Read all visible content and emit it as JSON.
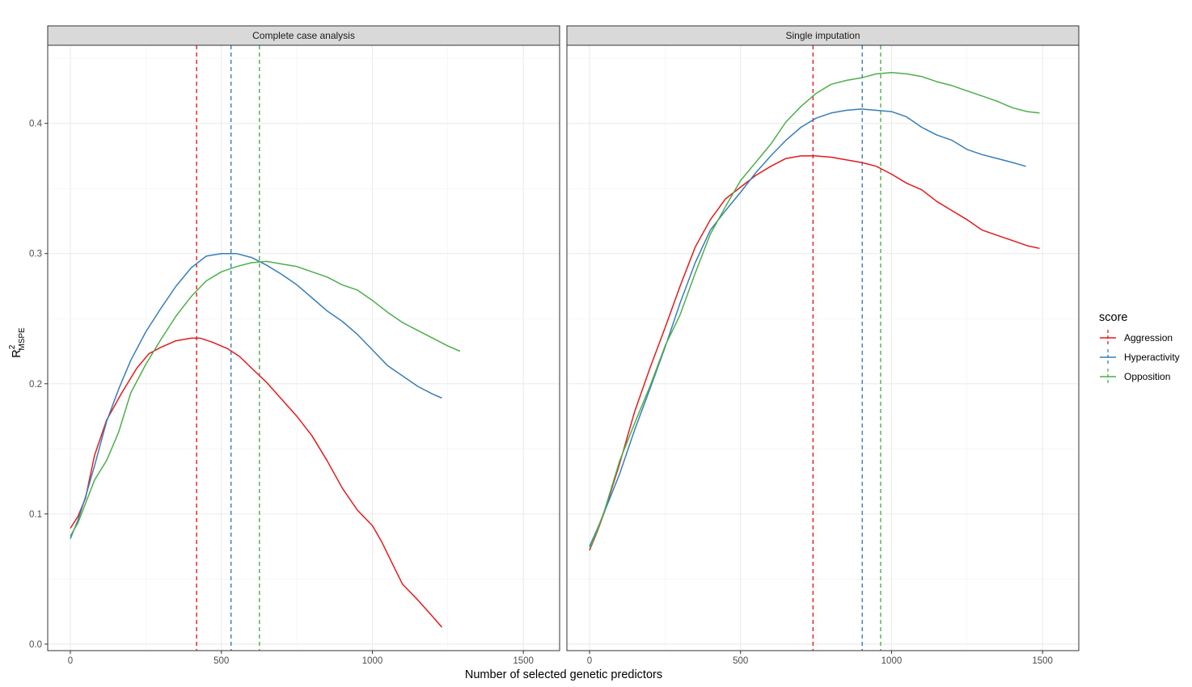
{
  "chart_data": {
    "type": "line",
    "xlabel": "Number of selected genetic predictors",
    "ylabel_main": "R",
    "ylabel_sup": "2",
    "ylabel_sub": "MSPE",
    "xlim": [
      -75,
      1620
    ],
    "ylim": [
      -0.005,
      0.46
    ],
    "x_ticks": [
      0,
      500,
      1000,
      1500
    ],
    "y_ticks": [
      0.0,
      0.1,
      0.2,
      0.3,
      0.4
    ],
    "y_tick_labels": [
      "0.0",
      "0.1",
      "0.2",
      "0.3",
      "0.4"
    ],
    "legend": {
      "title": "score",
      "position": "right"
    },
    "colors": {
      "Aggression": "#e41a1c",
      "Hyperactivity": "#377eb8",
      "Opposition": "#4daf4a"
    },
    "panels": [
      {
        "strip": "Complete case analysis",
        "vlines": {
          "Aggression": 418,
          "Hyperactivity": 532,
          "Opposition": 626
        },
        "series": [
          {
            "name": "Aggression",
            "points": [
              [
                0,
                0.089
              ],
              [
                25,
                0.098
              ],
              [
                50,
                0.112
              ],
              [
                80,
                0.145
              ],
              [
                120,
                0.172
              ],
              [
                170,
                0.193
              ],
              [
                220,
                0.212
              ],
              [
                260,
                0.223
              ],
              [
                300,
                0.228
              ],
              [
                350,
                0.233
              ],
              [
                400,
                0.235
              ],
              [
                430,
                0.235
              ],
              [
                470,
                0.232
              ],
              [
                520,
                0.227
              ],
              [
                560,
                0.221
              ],
              [
                600,
                0.212
              ],
              [
                650,
                0.201
              ],
              [
                700,
                0.188
              ],
              [
                750,
                0.175
              ],
              [
                800,
                0.16
              ],
              [
                850,
                0.141
              ],
              [
                900,
                0.12
              ],
              [
                950,
                0.103
              ],
              [
                1000,
                0.091
              ],
              [
                1030,
                0.079
              ],
              [
                1070,
                0.06
              ],
              [
                1100,
                0.046
              ],
              [
                1150,
                0.034
              ],
              [
                1200,
                0.021
              ],
              [
                1230,
                0.013
              ]
            ]
          },
          {
            "name": "Hyperactivity",
            "points": [
              [
                0,
                0.081
              ],
              [
                25,
                0.095
              ],
              [
                50,
                0.113
              ],
              [
                80,
                0.137
              ],
              [
                120,
                0.171
              ],
              [
                160,
                0.196
              ],
              [
                200,
                0.218
              ],
              [
                250,
                0.24
              ],
              [
                300,
                0.258
              ],
              [
                350,
                0.275
              ],
              [
                400,
                0.289
              ],
              [
                450,
                0.298
              ],
              [
                500,
                0.3
              ],
              [
                550,
                0.3
              ],
              [
                600,
                0.297
              ],
              [
                650,
                0.291
              ],
              [
                700,
                0.284
              ],
              [
                750,
                0.276
              ],
              [
                800,
                0.266
              ],
              [
                850,
                0.256
              ],
              [
                900,
                0.248
              ],
              [
                950,
                0.238
              ],
              [
                1000,
                0.226
              ],
              [
                1050,
                0.214
              ],
              [
                1100,
                0.206
              ],
              [
                1150,
                0.198
              ],
              [
                1200,
                0.192
              ],
              [
                1230,
                0.189
              ]
            ]
          },
          {
            "name": "Opposition",
            "points": [
              [
                0,
                0.083
              ],
              [
                25,
                0.093
              ],
              [
                50,
                0.108
              ],
              [
                80,
                0.126
              ],
              [
                120,
                0.141
              ],
              [
                160,
                0.163
              ],
              [
                200,
                0.193
              ],
              [
                250,
                0.215
              ],
              [
                300,
                0.234
              ],
              [
                350,
                0.252
              ],
              [
                400,
                0.267
              ],
              [
                450,
                0.279
              ],
              [
                500,
                0.286
              ],
              [
                550,
                0.29
              ],
              [
                600,
                0.293
              ],
              [
                650,
                0.294
              ],
              [
                700,
                0.292
              ],
              [
                750,
                0.29
              ],
              [
                800,
                0.286
              ],
              [
                850,
                0.282
              ],
              [
                900,
                0.276
              ],
              [
                950,
                0.272
              ],
              [
                1000,
                0.264
              ],
              [
                1050,
                0.255
              ],
              [
                1100,
                0.247
              ],
              [
                1150,
                0.241
              ],
              [
                1200,
                0.235
              ],
              [
                1250,
                0.229
              ],
              [
                1290,
                0.225
              ]
            ]
          }
        ]
      },
      {
        "strip": "Single imputation",
        "vlines": {
          "Aggression": 740,
          "Hyperactivity": 903,
          "Opposition": 964
        },
        "series": [
          {
            "name": "Aggression",
            "points": [
              [
                0,
                0.072
              ],
              [
                25,
                0.086
              ],
              [
                50,
                0.102
              ],
              [
                100,
                0.139
              ],
              [
                150,
                0.179
              ],
              [
                200,
                0.212
              ],
              [
                250,
                0.243
              ],
              [
                300,
                0.275
              ],
              [
                350,
                0.305
              ],
              [
                400,
                0.326
              ],
              [
                450,
                0.342
              ],
              [
                500,
                0.351
              ],
              [
                550,
                0.36
              ],
              [
                600,
                0.367
              ],
              [
                650,
                0.373
              ],
              [
                700,
                0.375
              ],
              [
                750,
                0.375
              ],
              [
                800,
                0.374
              ],
              [
                850,
                0.372
              ],
              [
                900,
                0.37
              ],
              [
                950,
                0.367
              ],
              [
                1000,
                0.361
              ],
              [
                1050,
                0.354
              ],
              [
                1100,
                0.349
              ],
              [
                1150,
                0.34
              ],
              [
                1200,
                0.333
              ],
              [
                1250,
                0.326
              ],
              [
                1300,
                0.318
              ],
              [
                1350,
                0.314
              ],
              [
                1400,
                0.31
              ],
              [
                1450,
                0.306
              ],
              [
                1490,
                0.304
              ]
            ]
          },
          {
            "name": "Hyperactivity",
            "points": [
              [
                0,
                0.075
              ],
              [
                25,
                0.088
              ],
              [
                50,
                0.102
              ],
              [
                100,
                0.131
              ],
              [
                150,
                0.165
              ],
              [
                200,
                0.196
              ],
              [
                250,
                0.228
              ],
              [
                300,
                0.262
              ],
              [
                350,
                0.293
              ],
              [
                400,
                0.318
              ],
              [
                450,
                0.333
              ],
              [
                500,
                0.347
              ],
              [
                550,
                0.362
              ],
              [
                600,
                0.375
              ],
              [
                650,
                0.387
              ],
              [
                700,
                0.397
              ],
              [
                750,
                0.404
              ],
              [
                800,
                0.408
              ],
              [
                850,
                0.41
              ],
              [
                900,
                0.411
              ],
              [
                950,
                0.41
              ],
              [
                1000,
                0.409
              ],
              [
                1050,
                0.405
              ],
              [
                1100,
                0.397
              ],
              [
                1150,
                0.391
              ],
              [
                1200,
                0.387
              ],
              [
                1250,
                0.38
              ],
              [
                1300,
                0.376
              ],
              [
                1350,
                0.373
              ],
              [
                1400,
                0.37
              ],
              [
                1445,
                0.367
              ]
            ]
          },
          {
            "name": "Opposition",
            "points": [
              [
                0,
                0.073
              ],
              [
                25,
                0.087
              ],
              [
                50,
                0.103
              ],
              [
                100,
                0.141
              ],
              [
                150,
                0.17
              ],
              [
                200,
                0.198
              ],
              [
                250,
                0.229
              ],
              [
                300,
                0.253
              ],
              [
                350,
                0.285
              ],
              [
                400,
                0.315
              ],
              [
                450,
                0.336
              ],
              [
                500,
                0.356
              ],
              [
                550,
                0.37
              ],
              [
                600,
                0.384
              ],
              [
                650,
                0.401
              ],
              [
                700,
                0.413
              ],
              [
                750,
                0.423
              ],
              [
                800,
                0.43
              ],
              [
                850,
                0.433
              ],
              [
                900,
                0.435
              ],
              [
                950,
                0.438
              ],
              [
                1000,
                0.439
              ],
              [
                1050,
                0.438
              ],
              [
                1100,
                0.436
              ],
              [
                1150,
                0.432
              ],
              [
                1200,
                0.429
              ],
              [
                1250,
                0.425
              ],
              [
                1300,
                0.421
              ],
              [
                1350,
                0.417
              ],
              [
                1400,
                0.412
              ],
              [
                1450,
                0.409
              ],
              [
                1490,
                0.408
              ]
            ]
          }
        ]
      }
    ]
  }
}
